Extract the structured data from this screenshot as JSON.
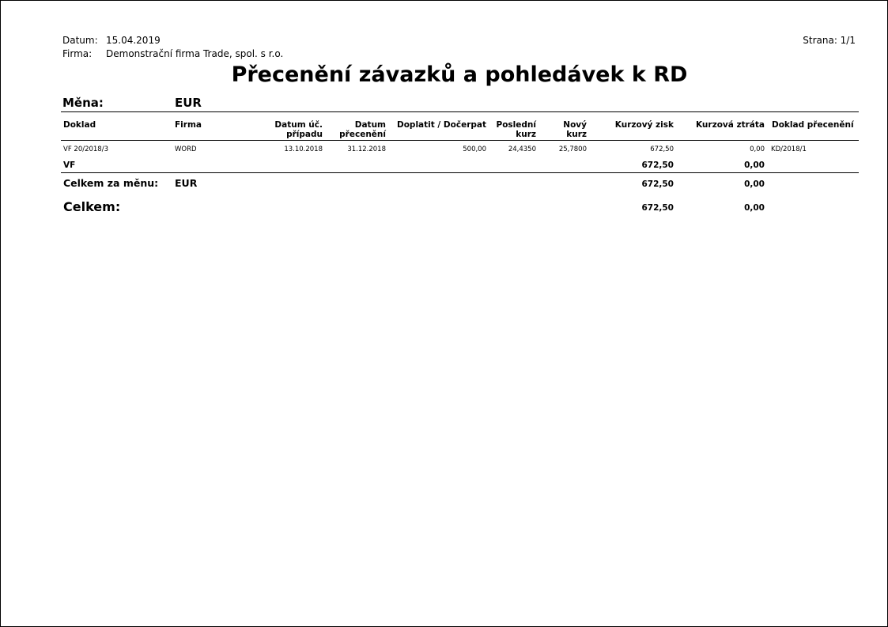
{
  "header": {
    "date_label": "Datum:",
    "date_value": "15.04.2019",
    "company_label": "Firma:",
    "company_value": "Demonstrační firma Trade, spol. s r.o.",
    "page_label": "Strana: 1/1"
  },
  "title": "Přecenění závazků a pohledávek k RD",
  "currency": {
    "label": "Měna:",
    "value": "EUR"
  },
  "columns": {
    "doklad": "Doklad",
    "firma": "Firma",
    "datum_uc_1": "Datum úč.",
    "datum_uc_2": "případu",
    "datum_prec_1": "Datum",
    "datum_prec_2": "přecenění",
    "doplatit": "Doplatit / Dočerpat",
    "posledni_1": "Poslední",
    "posledni_2": "kurz",
    "novy_1": "Nový",
    "novy_2": "kurz",
    "zisk": "Kurzový zisk",
    "ztrata": "Kurzová ztráta",
    "doklad_prec": "Doklad přecenění"
  },
  "rows": [
    {
      "doklad": "VF  20/2018/3",
      "firma": "WORD",
      "datum_uc": "13.10.2018",
      "datum_prec": "31.12.2018",
      "doplatit": "500,00",
      "posledni_kurz": "24,4350",
      "novy_kurz": "25,7800",
      "zisk": "672,50",
      "ztrata": "0,00",
      "doklad_prec": "KD/2018/1"
    }
  ],
  "group_total": {
    "label": "VF",
    "zisk": "672,50",
    "ztrata": "0,00"
  },
  "currency_total": {
    "label": "Celkem za měnu:",
    "currency": "EUR",
    "zisk": "672,50",
    "ztrata": "0,00"
  },
  "grand_total": {
    "label": "Celkem:",
    "zisk": "672,50",
    "ztrata": "0,00"
  }
}
